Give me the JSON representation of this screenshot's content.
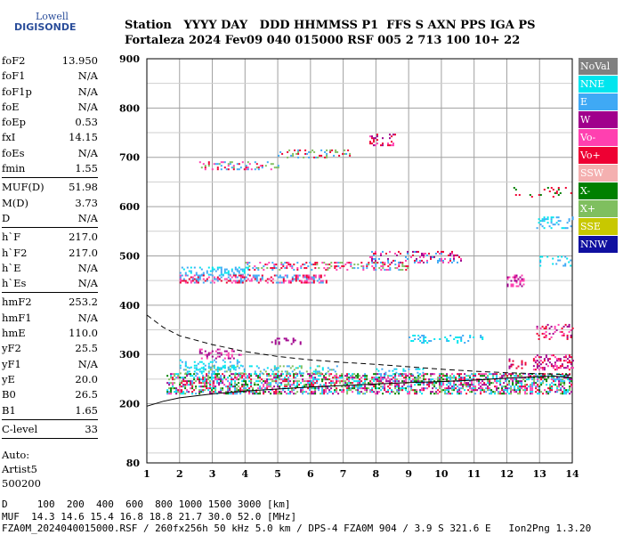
{
  "logo": {
    "line1": "Lowell",
    "line2": "DIGISONDE"
  },
  "header": {
    "labels": "Station   YYYY DAY   DDD HHMMSS P1  FFS S AXN PPS IGA PS",
    "values": "Fortaleza 2024 Fev09 040 015000 RSF 005 2 713 100 10+ 22"
  },
  "params": {
    "group1": [
      {
        "name": "foF2",
        "value": "13.950"
      },
      {
        "name": "foF1",
        "value": "N/A"
      },
      {
        "name": "foF1p",
        "value": "N/A"
      },
      {
        "name": "foE",
        "value": "N/A"
      },
      {
        "name": "foEp",
        "value": "0.53"
      },
      {
        "name": "fxI",
        "value": "14.15"
      },
      {
        "name": "foEs",
        "value": "N/A"
      },
      {
        "name": "fmin",
        "value": "1.55"
      }
    ],
    "group2": [
      {
        "name": "MUF(D)",
        "value": "51.98"
      },
      {
        "name": "M(D)",
        "value": "3.73"
      },
      {
        "name": "D",
        "value": "N/A"
      }
    ],
    "group3": [
      {
        "name": "h`F",
        "value": "217.0"
      },
      {
        "name": "h`F2",
        "value": "217.0"
      },
      {
        "name": "h`E",
        "value": "N/A"
      },
      {
        "name": "h`Es",
        "value": "N/A"
      }
    ],
    "group4": [
      {
        "name": "hmF2",
        "value": "253.2"
      },
      {
        "name": "hmF1",
        "value": "N/A"
      },
      {
        "name": "hmE",
        "value": "110.0"
      },
      {
        "name": "yF2",
        "value": "25.5"
      },
      {
        "name": "yF1",
        "value": "N/A"
      },
      {
        "name": "yE",
        "value": "20.0"
      },
      {
        "name": "B0",
        "value": "26.5"
      },
      {
        "name": "B1",
        "value": "1.65"
      }
    ],
    "group5": [
      {
        "name": "C-level",
        "value": "33"
      }
    ],
    "auto": [
      "Auto:",
      "Artist5",
      "500200"
    ]
  },
  "legend": [
    {
      "label": "NoVal",
      "color": "#808080",
      "text": "#ffffff"
    },
    {
      "label": "NNE",
      "color": "#00e5ee",
      "text": "#ffffff"
    },
    {
      "label": "E",
      "color": "#3fa9f5",
      "text": "#ffffff"
    },
    {
      "label": "W",
      "color": "#a0008c",
      "text": "#ffffff"
    },
    {
      "label": "Vo-",
      "color": "#ff40b0",
      "text": "#ffffff"
    },
    {
      "label": "Vo+",
      "color": "#ee0033",
      "text": "#ffffff"
    },
    {
      "label": "SSW",
      "color": "#f4b0b0",
      "text": "#ffffff"
    },
    {
      "label": "X-",
      "color": "#008000",
      "text": "#ffffff"
    },
    {
      "label": "X+",
      "color": "#7fbf5f",
      "text": "#ffffff"
    },
    {
      "label": "SSE",
      "color": "#c8c800",
      "text": "#ffffff"
    },
    {
      "label": "NNW",
      "color": "#1010a0",
      "text": "#ffffff"
    }
  ],
  "chart_data": {
    "type": "scatter",
    "title": "",
    "xlabel": "",
    "ylabel": "",
    "xlim": [
      1,
      14
    ],
    "ylim": [
      80,
      900
    ],
    "x_ticks": [
      1,
      2,
      3,
      4,
      5,
      6,
      7,
      8,
      9,
      10,
      11,
      12,
      13,
      14
    ],
    "y_ticks": [
      80,
      200,
      300,
      400,
      500,
      600,
      700,
      800,
      900
    ],
    "grid": true,
    "traces": [
      {
        "name": "",
        "style": "solid",
        "x": [
          1.0,
          1.5,
          2.0,
          3.0,
          4.0,
          5.0,
          6.0,
          7.0,
          8.0,
          9.0,
          10.0,
          11.0,
          12.0,
          13.0,
          13.5,
          14.0
        ],
        "y": [
          195,
          205,
          212,
          220,
          226,
          230,
          234,
          237,
          240,
          243,
          245,
          248,
          252,
          255,
          256,
          252
        ]
      },
      {
        "name": "",
        "style": "dashed",
        "x": [
          1.0,
          1.5,
          2.0,
          3.0,
          4.0,
          5.0,
          6.0,
          7.0,
          8.0,
          9.0,
          10.0,
          11.0,
          12.0,
          13.0,
          13.5,
          14.0
        ],
        "y": [
          380,
          355,
          338,
          320,
          306,
          296,
          289,
          284,
          280,
          275,
          270,
          266,
          263,
          261,
          260,
          258
        ]
      }
    ],
    "echo_bands": [
      {
        "x0": 1.6,
        "x1": 14.0,
        "y0": 222,
        "y1": 262,
        "colors": [
          "#ee0033",
          "#3fa9f5",
          "#ff40b0",
          "#7fbf5f",
          "#008000",
          "#00e5ee",
          "#a0008c"
        ],
        "density": 1.0
      },
      {
        "x0": 2.0,
        "x1": 6.8,
        "y0": 262,
        "y1": 278,
        "colors": [
          "#3fa9f5",
          "#00e5ee",
          "#7fbf5f"
        ],
        "density": 0.5
      },
      {
        "x0": 2.0,
        "x1": 4.0,
        "y0": 270,
        "y1": 290,
        "colors": [
          "#3fa9f5",
          "#00e5ee"
        ],
        "density": 0.4
      },
      {
        "x0": 2.6,
        "x1": 3.9,
        "y0": 292,
        "y1": 312,
        "colors": [
          "#a0008c",
          "#ff40b0"
        ],
        "density": 0.6
      },
      {
        "x0": 4.8,
        "x1": 5.8,
        "y0": 322,
        "y1": 334,
        "colors": [
          "#a0008c"
        ],
        "density": 0.4
      },
      {
        "x0": 8.0,
        "x1": 9.5,
        "y0": 260,
        "y1": 272,
        "colors": [
          "#3fa9f5",
          "#00e5ee"
        ],
        "density": 0.4
      },
      {
        "x0": 9.0,
        "x1": 11.3,
        "y0": 325,
        "y1": 340,
        "colors": [
          "#00e5ee",
          "#3fa9f5"
        ],
        "density": 0.4
      },
      {
        "x0": 2.0,
        "x1": 4.1,
        "y0": 462,
        "y1": 478,
        "colors": [
          "#3fa9f5",
          "#00e5ee"
        ],
        "density": 0.6
      },
      {
        "x0": 2.0,
        "x1": 6.5,
        "y0": 445,
        "y1": 462,
        "colors": [
          "#ee0033",
          "#ff40b0",
          "#3fa9f5"
        ],
        "density": 0.8
      },
      {
        "x0": 4.0,
        "x1": 9.0,
        "y0": 470,
        "y1": 488,
        "colors": [
          "#3fa9f5",
          "#ee0033",
          "#ff40b0",
          "#7fbf5f"
        ],
        "density": 0.6
      },
      {
        "x0": 7.8,
        "x1": 10.6,
        "y0": 488,
        "y1": 510,
        "colors": [
          "#ee0033",
          "#ff40b0",
          "#a0008c",
          "#3fa9f5"
        ],
        "density": 0.6
      },
      {
        "x0": 2.6,
        "x1": 5.0,
        "y0": 675,
        "y1": 692,
        "colors": [
          "#ee0033",
          "#3fa9f5",
          "#ff40b0",
          "#7fbf5f"
        ],
        "density": 0.5
      },
      {
        "x0": 5.0,
        "x1": 7.2,
        "y0": 698,
        "y1": 716,
        "colors": [
          "#ee0033",
          "#3fa9f5",
          "#7fbf5f"
        ],
        "density": 0.5
      },
      {
        "x0": 7.8,
        "x1": 8.6,
        "y0": 725,
        "y1": 748,
        "colors": [
          "#ee0033",
          "#ff40b0",
          "#a0008c"
        ],
        "density": 0.5
      },
      {
        "x0": 12.0,
        "x1": 12.5,
        "y0": 440,
        "y1": 462,
        "colors": [
          "#a0008c",
          "#ff40b0"
        ],
        "density": 0.6
      },
      {
        "x0": 12.0,
        "x1": 12.6,
        "y0": 272,
        "y1": 292,
        "colors": [
          "#ee0033",
          "#a0008c"
        ],
        "density": 0.5
      },
      {
        "x0": 12.8,
        "x1": 14.0,
        "y0": 270,
        "y1": 300,
        "colors": [
          "#ee0033",
          "#a0008c",
          "#ff40b0"
        ],
        "density": 0.7
      },
      {
        "x0": 12.9,
        "x1": 14.0,
        "y0": 330,
        "y1": 362,
        "colors": [
          "#a0008c",
          "#ff40b0",
          "#ee0033"
        ],
        "density": 0.4
      },
      {
        "x0": 12.9,
        "x1": 14.0,
        "y0": 555,
        "y1": 580,
        "colors": [
          "#00e5ee",
          "#3fa9f5"
        ],
        "density": 0.4
      },
      {
        "x0": 13.0,
        "x1": 14.0,
        "y0": 480,
        "y1": 500,
        "colors": [
          "#3fa9f5",
          "#00e5ee"
        ],
        "density": 0.3
      },
      {
        "x0": 12.2,
        "x1": 14.0,
        "y0": 620,
        "y1": 640,
        "colors": [
          "#008000",
          "#ee0033"
        ],
        "density": 0.2
      }
    ]
  },
  "footer": {
    "d_row": "D     100  200  400  600  800 1000 1500 3000 [km]",
    "muf_row": "MUF  14.3 14.6 15.4 16.8 18.8 21.7 30.0 52.0 [MHz]",
    "file_row": "FZA0M_2024040015000.RSF / 260fx256h 50 kHz 5.0 km / DPS-4 FZA0M 904 / 3.9 S 321.6 E   Ion2Png 1.3.20"
  }
}
